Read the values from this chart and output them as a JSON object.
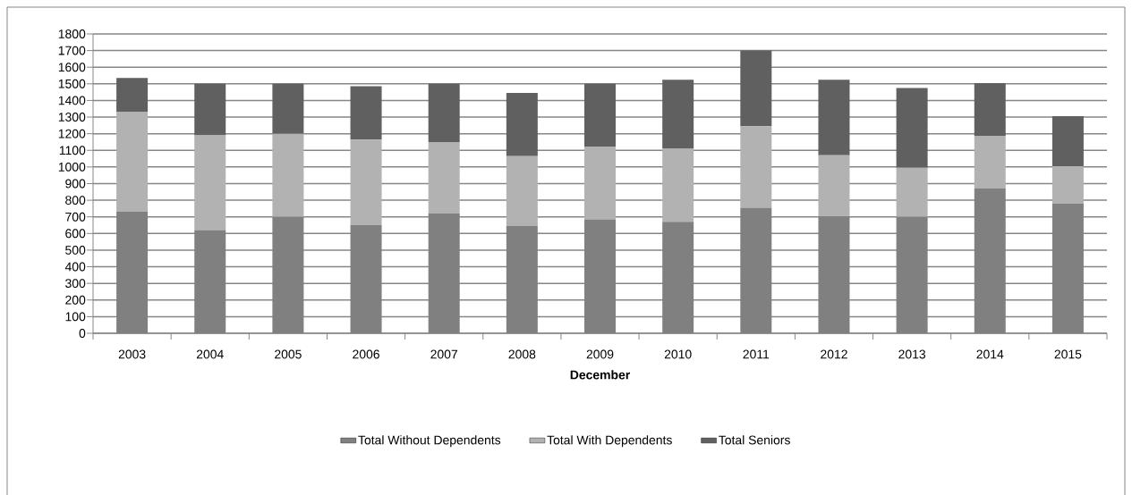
{
  "chart_data": {
    "type": "bar",
    "stacked": true,
    "xlabel": "December",
    "categories": [
      "2003",
      "2004",
      "2005",
      "2006",
      "2007",
      "2008",
      "2009",
      "2010",
      "2011",
      "2012",
      "2013",
      "2014",
      "2015"
    ],
    "series": [
      {
        "name": "Total Without Dependents",
        "color": "#808080",
        "values": [
          730,
          620,
          700,
          650,
          720,
          645,
          685,
          670,
          755,
          705,
          700,
          870,
          780
        ]
      },
      {
        "name": "Total With Dependents",
        "color": "#b2b2b2",
        "values": [
          600,
          570,
          500,
          515,
          430,
          420,
          435,
          440,
          490,
          365,
          295,
          315,
          225
        ]
      },
      {
        "name": "Total Seniors",
        "color": "#606060",
        "values": [
          205,
          310,
          300,
          320,
          350,
          380,
          380,
          415,
          455,
          455,
          480,
          320,
          300
        ]
      }
    ],
    "ylim": [
      0,
      1800
    ],
    "yticks": [
      0,
      100,
      200,
      300,
      400,
      500,
      600,
      700,
      800,
      900,
      1000,
      1100,
      1200,
      1300,
      1400,
      1500,
      1600,
      1700,
      1800
    ],
    "grid": "y",
    "legend": "bottom"
  }
}
